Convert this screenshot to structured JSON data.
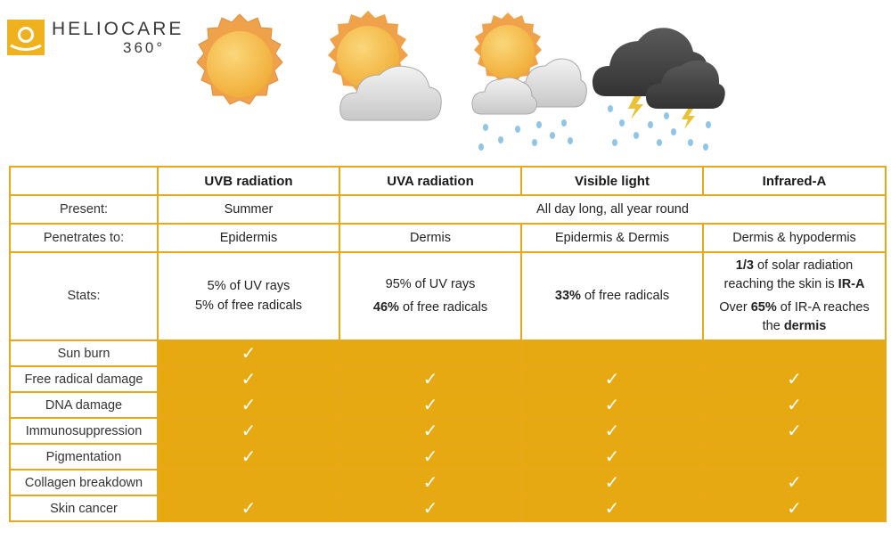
{
  "brand": {
    "name": "HELIOCARE",
    "suffix": "360°"
  },
  "icons": [
    "sun-icon",
    "sun-cloud-icon",
    "sun-rain-icon",
    "storm-rain-icon"
  ],
  "columns": [
    "UVB radiation",
    "UVA radiation",
    "Visible light",
    "Infrared-A"
  ],
  "rows": {
    "present": {
      "label": "Present:",
      "uvb": "Summer",
      "rest": "All day long, all year round"
    },
    "penetrates": {
      "label": "Penetrates to:",
      "uvb": "Epidermis",
      "uva": "Dermis",
      "visible_a": "Epidermis & ",
      "visible_b": "Dermis",
      "ira_a": "Dermis",
      "ira_b": " & hypodermis"
    },
    "stats": {
      "label": "Stats:",
      "uvb_1": "5% of UV rays",
      "uvb_2": "5% of free radicals",
      "uva_1": "95% of UV rays",
      "uva_2a": "46%",
      "uva_2b": " of free radicals",
      "vis_a": "33%",
      "vis_b": " of free radicals",
      "ira_1a": "1/3",
      "ira_1b": " of solar radiation",
      "ira_2a": "reaching the skin is ",
      "ira_2b": "IR-A",
      "ira_3a": "Over ",
      "ira_3b": "65%",
      "ira_3c": " of IR-A reaches",
      "ira_4a": "the ",
      "ira_4b": "dermis"
    }
  },
  "effects": [
    {
      "label": "Sun burn",
      "checks": [
        true,
        false,
        false,
        false
      ]
    },
    {
      "label": "Free radical damage",
      "checks": [
        true,
        true,
        true,
        true
      ]
    },
    {
      "label": "DNA damage",
      "checks": [
        true,
        true,
        true,
        true
      ]
    },
    {
      "label": "Immunosuppression",
      "checks": [
        true,
        true,
        true,
        true
      ]
    },
    {
      "label": "Pigmentation",
      "checks": [
        true,
        true,
        true,
        false
      ]
    },
    {
      "label": "Collagen breakdown",
      "checks": [
        false,
        true,
        true,
        true
      ]
    },
    {
      "label": "Skin cancer",
      "checks": [
        true,
        true,
        true,
        true
      ]
    }
  ],
  "check_glyph": "✓",
  "colors": {
    "accent": "#e6a912",
    "sun": "#f2b13c",
    "cloud": "#d6d6d6",
    "storm": "#4a4a4a"
  }
}
